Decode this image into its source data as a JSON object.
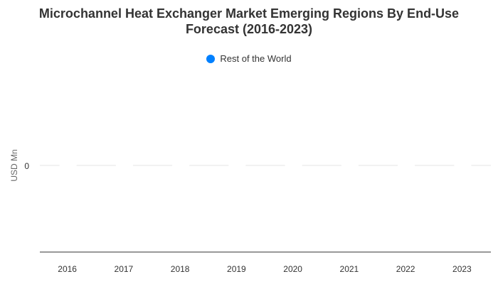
{
  "title_line1": "Microchannel Heat Exchanger Market Emerging Regions By End-Use",
  "title_line2": "Forecast (2016-2023)",
  "legend": {
    "label": "Rest of the World",
    "color": "#0080ff"
  },
  "chart_data": {
    "type": "bar",
    "title": "Microchannel Heat Exchanger Market Emerging Regions By End-Use Forecast (2016-2023)",
    "categories": [
      "2016",
      "2017",
      "2018",
      "2019",
      "2020",
      "2021",
      "2022",
      "2023"
    ],
    "series": [
      {
        "name": "Rest of the World",
        "values": [
          0,
          0,
          0,
          0,
          0,
          0,
          0,
          0
        ],
        "color": "#0080ff"
      }
    ],
    "xlabel": "",
    "ylabel": "USD Mn",
    "y_ticks": [
      "0"
    ],
    "grid": true,
    "legend_position": "top-center"
  }
}
